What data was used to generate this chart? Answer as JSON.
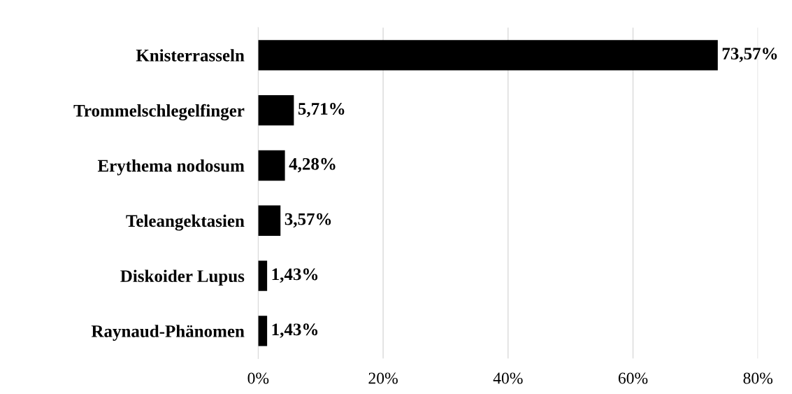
{
  "chart_data": {
    "type": "bar",
    "orientation": "horizontal",
    "categories": [
      "Knisterrasseln",
      "Trommelschlegelfinger",
      "Erythema nodosum",
      "Teleangektasien",
      "Diskoider Lupus",
      "Raynaud-Phänomen"
    ],
    "values": [
      73.57,
      5.71,
      4.28,
      3.57,
      1.43,
      1.43
    ],
    "value_labels": [
      "73,57%",
      "5,71%",
      "4,28%",
      "3,57%",
      "1,43%",
      "1,43%"
    ],
    "color": "#000000",
    "xlim": [
      0,
      80
    ],
    "xticks": [
      {
        "value": 0,
        "label": "0%"
      },
      {
        "value": 20,
        "label": "20%"
      },
      {
        "value": 40,
        "label": "40%"
      },
      {
        "value": 60,
        "label": "60%"
      },
      {
        "value": 80,
        "label": "80%"
      }
    ],
    "grid": "x",
    "legend": false
  }
}
